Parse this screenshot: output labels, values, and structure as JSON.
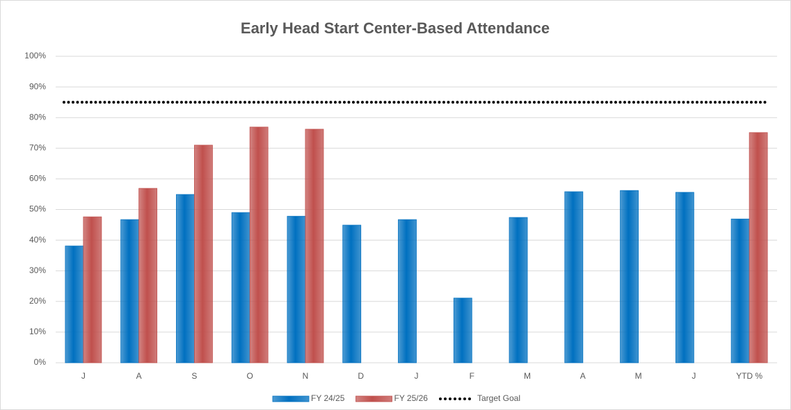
{
  "chart_data": {
    "type": "bar",
    "title": "Early Head Start Center-Based Attendance",
    "categories": [
      "J",
      "A",
      "S",
      "O",
      "N",
      "D",
      "J",
      "F",
      "M",
      "A",
      "M",
      "J",
      "YTD %"
    ],
    "series": [
      {
        "name": "FY 24/25",
        "color": "#0070c0",
        "values": [
          38.1,
          46.7,
          54.9,
          49,
          47.8,
          44.9,
          46.7,
          21.1,
          47.4,
          55.8,
          56.2,
          55.6,
          46.9
        ]
      },
      {
        "name": "FY 25/26",
        "color": "#c0504d",
        "values": [
          47.6,
          56.9,
          71,
          76.9,
          76.2,
          null,
          null,
          null,
          null,
          null,
          null,
          null,
          75.1
        ]
      },
      {
        "name": "Target Goal",
        "type": "line",
        "color": "#000000",
        "values": [
          85,
          85,
          85,
          85,
          85,
          85,
          85,
          85,
          85,
          85,
          85,
          85,
          85
        ]
      }
    ],
    "ylim": [
      0,
      100
    ],
    "yticks": [
      {
        "value": 0,
        "label": "0%"
      },
      {
        "value": 10,
        "label": "10%"
      },
      {
        "value": 20,
        "label": "20%"
      },
      {
        "value": 30,
        "label": "30%"
      },
      {
        "value": 40,
        "label": "40%"
      },
      {
        "value": 50,
        "label": "50%"
      },
      {
        "value": 60,
        "label": "60%"
      },
      {
        "value": 70,
        "label": "70%"
      },
      {
        "value": 80,
        "label": "80%"
      },
      {
        "value": 90,
        "label": "90%"
      },
      {
        "value": 100,
        "label": "100%"
      }
    ],
    "grid": true,
    "legend": "bottom"
  }
}
